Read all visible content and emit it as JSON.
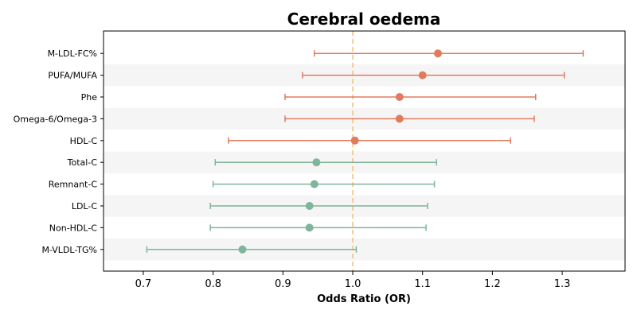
{
  "chart_data": {
    "type": "forest",
    "title": "Cerebral oedema",
    "xlabel": "Odds Ratio (OR)",
    "xlim": [
      0.643,
      1.39
    ],
    "xticks": [
      0.7,
      0.8,
      0.9,
      1.0,
      1.1,
      1.2,
      1.3
    ],
    "xtick_labels": [
      "0.7",
      "0.8",
      "0.9",
      "1.0",
      "1.1",
      "1.2",
      "1.3"
    ],
    "reference_line": 1.0,
    "colors": {
      "positive": "#e07b5f",
      "negative": "#7fb59a",
      "reference": "#f0c27a",
      "band": "#f5f5f5"
    },
    "rows": [
      {
        "label": "M-LDL-FC%",
        "or": 1.122,
        "lower": 0.945,
        "upper": 1.33,
        "direction": "positive"
      },
      {
        "label": "PUFA/MUFA",
        "or": 1.1,
        "lower": 0.928,
        "upper": 1.303,
        "direction": "positive"
      },
      {
        "label": "Phe",
        "or": 1.067,
        "lower": 0.903,
        "upper": 1.262,
        "direction": "positive"
      },
      {
        "label": "Omega-6/Omega-3",
        "or": 1.067,
        "lower": 0.903,
        "upper": 1.26,
        "direction": "positive"
      },
      {
        "label": "HDL-C",
        "or": 1.003,
        "lower": 0.822,
        "upper": 1.226,
        "direction": "positive"
      },
      {
        "label": "Total-C",
        "or": 0.948,
        "lower": 0.803,
        "upper": 1.12,
        "direction": "negative"
      },
      {
        "label": "Remnant-C",
        "or": 0.945,
        "lower": 0.8,
        "upper": 1.117,
        "direction": "negative"
      },
      {
        "label": "LDL-C",
        "or": 0.938,
        "lower": 0.796,
        "upper": 1.107,
        "direction": "negative"
      },
      {
        "label": "Non-HDL-C",
        "or": 0.938,
        "lower": 0.796,
        "upper": 1.105,
        "direction": "negative"
      },
      {
        "label": "M-VLDL-TG%",
        "or": 0.842,
        "lower": 0.705,
        "upper": 1.005,
        "direction": "negative"
      }
    ]
  }
}
